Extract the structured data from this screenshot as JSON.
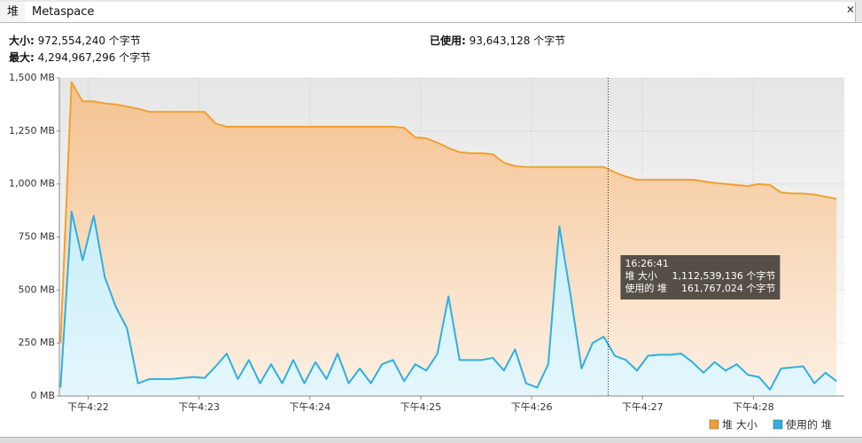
{
  "tabs": [
    "堆",
    "Metaspace"
  ],
  "info": {
    "size_label": "大小:",
    "size": "972,554,240 个字节",
    "max_label": "最大:",
    "max": "4,294,967,296 个字节",
    "used_label": "已使用:",
    "used": "93,643,128 个字节"
  },
  "chart_data": {
    "type": "area",
    "x": [
      981.75,
      981.85,
      981.95,
      982.05,
      982.15,
      982.25,
      982.35,
      982.45,
      982.55,
      982.65,
      982.75,
      982.85,
      982.95,
      983.05,
      983.15,
      983.25,
      983.35,
      983.45,
      983.55,
      983.65,
      983.75,
      983.85,
      983.95,
      984.05,
      984.15,
      984.25,
      984.35,
      984.45,
      984.55,
      984.65,
      984.75,
      984.85,
      984.95,
      985.05,
      985.15,
      985.25,
      985.35,
      985.45,
      985.55,
      985.65,
      985.75,
      985.85,
      985.95,
      986.05,
      986.15,
      986.25,
      986.35,
      986.45,
      986.55,
      986.65,
      986.75,
      986.85,
      986.95,
      987.05,
      987.15,
      987.25,
      987.35,
      987.45,
      987.55,
      987.65,
      987.75,
      987.85,
      987.95,
      988.05,
      988.15,
      988.25,
      988.35,
      988.45,
      988.55,
      988.65,
      988.75
    ],
    "series": [
      {
        "name": "堆 大小",
        "color": "#f0a030",
        "values": [
          250,
          1480,
          1390,
          1390,
          1380,
          1375,
          1365,
          1355,
          1340,
          1340,
          1340,
          1340,
          1340,
          1340,
          1285,
          1270,
          1270,
          1270,
          1270,
          1270,
          1270,
          1270,
          1270,
          1270,
          1270,
          1270,
          1270,
          1270,
          1270,
          1270,
          1270,
          1265,
          1220,
          1215,
          1195,
          1170,
          1150,
          1145,
          1145,
          1140,
          1100,
          1085,
          1080,
          1080,
          1080,
          1080,
          1080,
          1080,
          1080,
          1080,
          1055,
          1035,
          1020,
          1020,
          1020,
          1020,
          1020,
          1020,
          1012,
          1005,
          1000,
          995,
          990,
          1000,
          995,
          960,
          955,
          955,
          950,
          940,
          930
        ]
      },
      {
        "name": "使用的 堆",
        "color": "#30aee0",
        "values": [
          40,
          870,
          640,
          850,
          560,
          420,
          320,
          60,
          80,
          80,
          80,
          85,
          90,
          85,
          140,
          200,
          80,
          170,
          60,
          150,
          60,
          170,
          60,
          160,
          80,
          200,
          60,
          130,
          60,
          150,
          170,
          70,
          150,
          120,
          200,
          470,
          170,
          170,
          170,
          180,
          120,
          220,
          60,
          40,
          150,
          800,
          480,
          130,
          250,
          280,
          190,
          170,
          120,
          190,
          195,
          195,
          200,
          160,
          110,
          160,
          120,
          150,
          100,
          90,
          30,
          130,
          135,
          140,
          60,
          110,
          70
        ]
      }
    ],
    "xlim": [
      981.74,
      988.82
    ],
    "xticks": [
      {
        "value": 982,
        "label": "下午4:22"
      },
      {
        "value": 983,
        "label": "下午4:23"
      },
      {
        "value": 984,
        "label": "下午4:24"
      },
      {
        "value": 985,
        "label": "下午4:25"
      },
      {
        "value": 986,
        "label": "下午4:26"
      },
      {
        "value": 987,
        "label": "下午4:27"
      },
      {
        "value": 988,
        "label": "下午4:28"
      }
    ],
    "ylim": [
      0,
      1500
    ],
    "yticks": [
      {
        "value": 0,
        "label": "0 MB"
      },
      {
        "value": 250,
        "label": "250 MB"
      },
      {
        "value": 500,
        "label": "500 MB"
      },
      {
        "value": 750,
        "label": "750 MB"
      },
      {
        "value": 1000,
        "label": "1,000 MB"
      },
      {
        "value": 1250,
        "label": "1,250 MB"
      },
      {
        "value": 1500,
        "label": "1,500 MB"
      }
    ],
    "grid": true,
    "legend": "bottom-right",
    "cursor": {
      "x": 986.69,
      "time": "16:26:41",
      "rows": [
        {
          "label": "堆 大小",
          "value": "1,112,539,136 个字节"
        },
        {
          "label": "使用的 堆",
          "value": "161,767,024 个字节"
        }
      ]
    }
  }
}
